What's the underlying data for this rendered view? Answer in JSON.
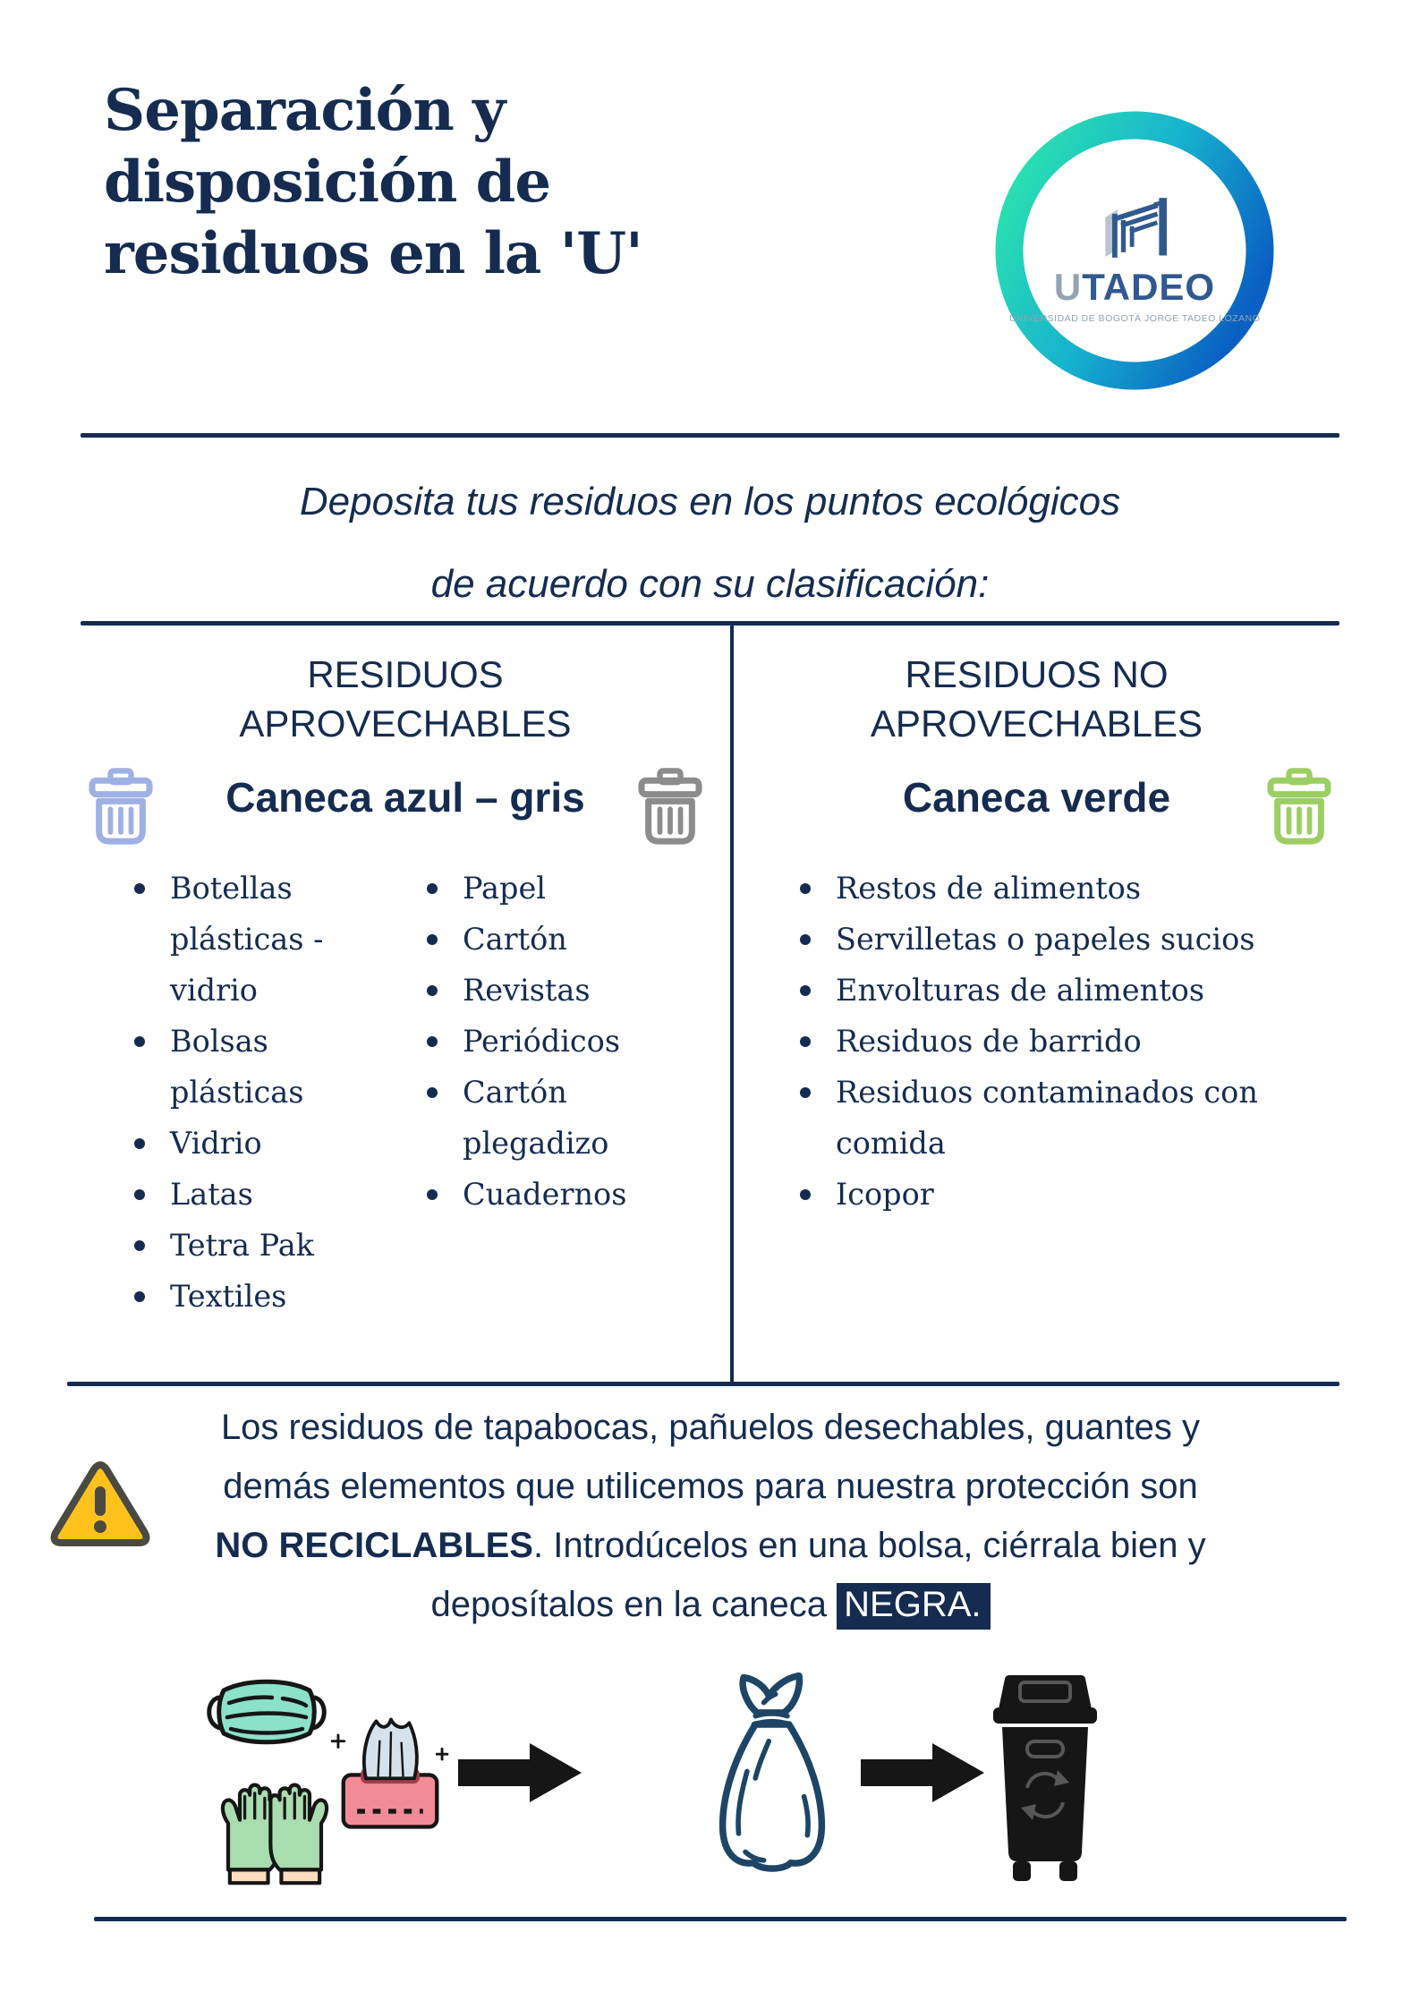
{
  "page": {
    "title_lines": [
      "Separación y",
      "disposición de",
      "residuos en la 'U'"
    ],
    "subtitle_lines": [
      "Deposita tus residuos en los puntos ecológicos",
      "de acuerdo con su clasificación:"
    ]
  },
  "logo": {
    "name_u": "U",
    "name_rest": "TADEO",
    "tagline": "UNIVERSIDAD DE BOGOTÁ JORGE TADEO LOZANO"
  },
  "columns": {
    "left": {
      "header": "RESIDUOS APROVECHABLES",
      "bin_label": "Caneca azul – gris",
      "bin_icons": [
        "blue-trash-can",
        "gray-trash-can"
      ],
      "list_a": [
        "Botellas plásticas - vidrio",
        "Bolsas plásticas",
        "Vidrio",
        "Latas",
        "Tetra Pak",
        "Textiles"
      ],
      "list_b": [
        "Papel",
        "Cartón",
        "Revistas",
        "Periódicos",
        "Cartón plegadizo",
        "Cuadernos"
      ]
    },
    "right": {
      "header": "RESIDUOS NO APROVECHABLES",
      "bin_label": "Caneca verde",
      "bin_icons": [
        "green-trash-can"
      ],
      "list": [
        "Restos de alimentos",
        "Servilletas o papeles sucios",
        "Envolturas de alimentos",
        "Residuos de barrido",
        "Residuos contaminados con comida",
        "Icopor"
      ]
    }
  },
  "warning": {
    "line1": "Los residuos de tapabocas, pañuelos desechables, guantes y",
    "line2": "demás elementos que utilicemos para nuestra protección son",
    "line3_bold": "NO RECICLABLES",
    "line3_rest": ". Introdúcelos en una bolsa, ciérrala bien y",
    "line4_pre": "deposítalos en la caneca ",
    "line4_highlight": "NEGRA."
  },
  "icons_bottom": [
    "face-mask",
    "gloves",
    "tissue-box",
    "arrow-right",
    "tied-bag",
    "arrow-right",
    "black-waste-bin"
  ],
  "colors": {
    "navy": "#152C50",
    "blue_can": "#9FB0E4",
    "gray_can": "#8C8C8C",
    "green_can": "#9CCF63",
    "warn_yellow": "#FFC21D",
    "warn_border": "#4A4A42",
    "mask_teal": "#8BE2C8",
    "glove_green": "#A9DCAE",
    "cuff_peach": "#FBDCC0",
    "tissue_pink": "#F38B96",
    "tissue_slot": "#A63B47",
    "tissue_paper": "#D6E2EB",
    "ink": "#161616",
    "bag_navy": "#1E4566",
    "logo_navy": "#30598F",
    "logo_gray": "#93A3B1",
    "logo_teal": "#2BE3AE",
    "logo_blue": "#0A5FC2"
  }
}
